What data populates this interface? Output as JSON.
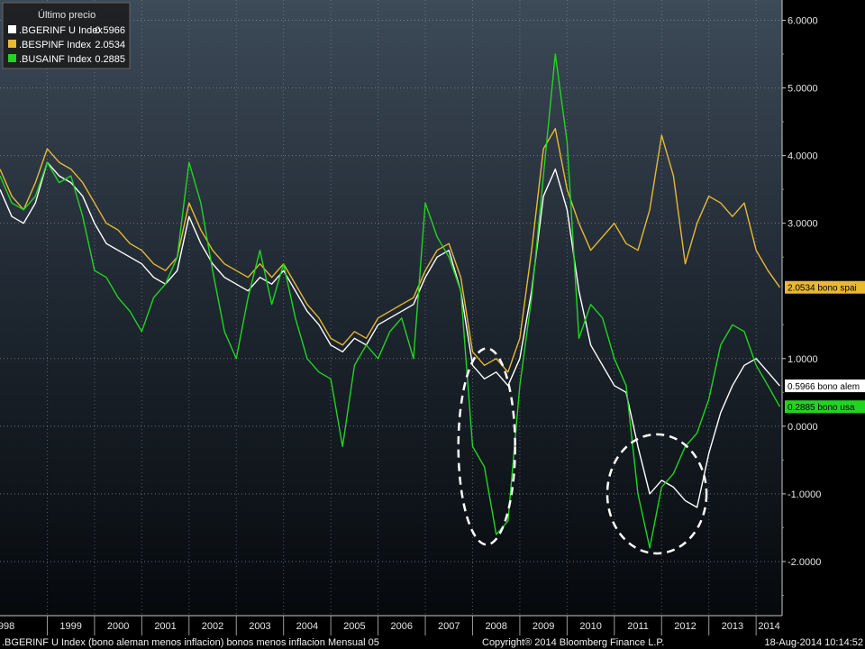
{
  "chart_data": {
    "type": "line",
    "legend": {
      "title": "Último precio",
      "placement": "top-left",
      "entries": [
        {
          "name": ".BGERINF U Index",
          "value": "0.5966",
          "color": "#ffffff"
        },
        {
          "name": ".BESPINF Index",
          "value": "2.0534",
          "color": "#e8b934"
        },
        {
          "name": ".BUSAINF Index",
          "value": "0.2885",
          "color": "#22d422"
        }
      ]
    },
    "yticks": [
      "6.0000",
      "5.0000",
      "4.0000",
      "3.0000",
      "1.0000",
      "0.0000",
      "-1.0000",
      "-2.0000"
    ],
    "ylim": [
      -2.8,
      6.3
    ],
    "xlim": [
      1998.0,
      2014.55
    ],
    "xticks": [
      "1998",
      "1999",
      "2000",
      "2001",
      "2002",
      "2003",
      "2004",
      "2005",
      "2006",
      "2007",
      "2008",
      "2009",
      "2010",
      "2011",
      "2012",
      "2013",
      "2014"
    ],
    "last_value_tags": [
      {
        "text": "2.0534 bono spai",
        "value": 2.0534,
        "bg": "#e8b934",
        "fg": "#000000"
      },
      {
        "text": "0.5966 bono alem",
        "value": 0.5966,
        "bg": "#ffffff",
        "fg": "#000000"
      },
      {
        "text": "0.2885 bono usa",
        "value": 0.2885,
        "bg": "#22d422",
        "fg": "#000000"
      }
    ],
    "series": [
      {
        "name": ".BGERINF U Index",
        "color": "#ffffff",
        "x": [
          1998.0,
          1998.25,
          1998.5,
          1998.75,
          1999.0,
          1999.25,
          1999.5,
          1999.75,
          2000.0,
          2000.25,
          2000.5,
          2000.75,
          2001.0,
          2001.25,
          2001.5,
          2001.75,
          2002.0,
          2002.25,
          2002.5,
          2002.75,
          2003.0,
          2003.25,
          2003.5,
          2003.75,
          2004.0,
          2004.25,
          2004.5,
          2004.75,
          2005.0,
          2005.25,
          2005.5,
          2005.75,
          2006.0,
          2006.25,
          2006.5,
          2006.75,
          2007.0,
          2007.25,
          2007.5,
          2007.75,
          2008.0,
          2008.25,
          2008.5,
          2008.75,
          2009.0,
          2009.25,
          2009.5,
          2009.75,
          2010.0,
          2010.25,
          2010.5,
          2010.75,
          2011.0,
          2011.25,
          2011.5,
          2011.75,
          2012.0,
          2012.25,
          2012.5,
          2012.75,
          2013.0,
          2013.25,
          2013.5,
          2013.75,
          2014.0,
          2014.25,
          2014.5
        ],
        "values": [
          3.5,
          3.1,
          3.0,
          3.3,
          3.9,
          3.7,
          3.6,
          3.4,
          3.0,
          2.7,
          2.6,
          2.5,
          2.4,
          2.2,
          2.1,
          2.3,
          3.1,
          2.7,
          2.4,
          2.2,
          2.1,
          2.0,
          2.2,
          2.1,
          2.3,
          2.0,
          1.7,
          1.5,
          1.2,
          1.1,
          1.3,
          1.2,
          1.5,
          1.6,
          1.7,
          1.8,
          2.2,
          2.5,
          2.6,
          2.0,
          0.9,
          0.7,
          0.8,
          0.6,
          1.0,
          2.0,
          3.4,
          3.8,
          3.2,
          2.0,
          1.2,
          0.9,
          0.6,
          0.5,
          -0.3,
          -1.0,
          -0.8,
          -0.9,
          -1.1,
          -1.2,
          -0.4,
          0.2,
          0.6,
          0.9,
          1.0,
          0.8,
          0.5966
        ]
      },
      {
        "name": ".BESPINF Index",
        "color": "#e8b934",
        "x": [
          1998.0,
          1998.25,
          1998.5,
          1998.75,
          1999.0,
          1999.25,
          1999.5,
          1999.75,
          2000.0,
          2000.25,
          2000.5,
          2000.75,
          2001.0,
          2001.25,
          2001.5,
          2001.75,
          2002.0,
          2002.25,
          2002.5,
          2002.75,
          2003.0,
          2003.25,
          2003.5,
          2003.75,
          2004.0,
          2004.25,
          2004.5,
          2004.75,
          2005.0,
          2005.25,
          2005.5,
          2005.75,
          2006.0,
          2006.25,
          2006.5,
          2006.75,
          2007.0,
          2007.25,
          2007.5,
          2007.75,
          2008.0,
          2008.25,
          2008.5,
          2008.75,
          2009.0,
          2009.25,
          2009.5,
          2009.75,
          2010.0,
          2010.25,
          2010.5,
          2010.75,
          2011.0,
          2011.25,
          2011.5,
          2011.75,
          2012.0,
          2012.25,
          2012.5,
          2012.75,
          2013.0,
          2013.25,
          2013.5,
          2013.75,
          2014.0,
          2014.25,
          2014.5
        ],
        "values": [
          3.8,
          3.4,
          3.2,
          3.6,
          4.1,
          3.9,
          3.8,
          3.6,
          3.3,
          3.0,
          2.9,
          2.7,
          2.6,
          2.4,
          2.3,
          2.5,
          3.3,
          2.9,
          2.6,
          2.4,
          2.3,
          2.2,
          2.4,
          2.2,
          2.4,
          2.1,
          1.8,
          1.6,
          1.3,
          1.2,
          1.4,
          1.3,
          1.6,
          1.7,
          1.8,
          1.9,
          2.3,
          2.6,
          2.7,
          2.2,
          1.1,
          0.9,
          1.0,
          0.8,
          1.3,
          2.6,
          4.1,
          4.4,
          3.5,
          3.0,
          2.6,
          2.8,
          3.0,
          2.7,
          2.6,
          3.2,
          4.3,
          3.7,
          2.4,
          3.0,
          3.4,
          3.3,
          3.1,
          3.3,
          2.6,
          2.3,
          2.0534
        ]
      },
      {
        "name": ".BUSAINF Index",
        "color": "#22d422",
        "x": [
          1998.0,
          1998.25,
          1998.5,
          1998.75,
          1999.0,
          1999.25,
          1999.5,
          1999.75,
          2000.0,
          2000.25,
          2000.5,
          2000.75,
          2001.0,
          2001.25,
          2001.5,
          2001.75,
          2002.0,
          2002.25,
          2002.5,
          2002.75,
          2003.0,
          2003.25,
          2003.5,
          2003.75,
          2004.0,
          2004.25,
          2004.5,
          2004.75,
          2005.0,
          2005.25,
          2005.5,
          2005.75,
          2006.0,
          2006.25,
          2006.5,
          2006.75,
          2007.0,
          2007.25,
          2007.5,
          2007.75,
          2008.0,
          2008.25,
          2008.5,
          2008.75,
          2009.0,
          2009.25,
          2009.5,
          2009.75,
          2010.0,
          2010.25,
          2010.5,
          2010.75,
          2011.0,
          2011.25,
          2011.5,
          2011.75,
          2012.0,
          2012.25,
          2012.5,
          2012.75,
          2013.0,
          2013.25,
          2013.5,
          2013.75,
          2014.0,
          2014.25,
          2014.5
        ],
        "values": [
          3.7,
          3.3,
          3.2,
          3.4,
          3.9,
          3.6,
          3.7,
          3.1,
          2.3,
          2.2,
          1.9,
          1.7,
          1.4,
          1.9,
          2.1,
          2.5,
          3.9,
          3.3,
          2.3,
          1.4,
          1.0,
          1.9,
          2.6,
          1.8,
          2.4,
          1.6,
          1.0,
          0.8,
          0.7,
          -0.3,
          0.9,
          1.2,
          1.0,
          1.4,
          1.6,
          1.0,
          3.3,
          2.8,
          2.5,
          2.0,
          -0.3,
          -0.6,
          -1.6,
          -1.4,
          0.6,
          1.9,
          3.7,
          5.5,
          4.2,
          1.3,
          1.8,
          1.6,
          1.0,
          0.6,
          -1.0,
          -1.8,
          -0.9,
          -0.7,
          -0.3,
          -0.1,
          0.4,
          1.2,
          1.5,
          1.4,
          0.9,
          0.6,
          0.2885
        ]
      }
    ],
    "annotations": [
      {
        "type": "dashed-ellipse",
        "cx": 2008.3,
        "cy": -0.3,
        "rx": 0.6,
        "ry": 1.45
      },
      {
        "type": "dashed-ellipse",
        "cx": 2011.9,
        "cy": -1.0,
        "rx": 1.05,
        "ry": 0.88
      }
    ],
    "footer": {
      "left": ".BGERINF U Index (bono aleman menos inflacion) bonos menos inflacion  Mensual 05",
      "center": "Copyright® 2014 Bloomberg Finance L.P.",
      "right": "18-Aug-2014 10:14:52"
    }
  }
}
